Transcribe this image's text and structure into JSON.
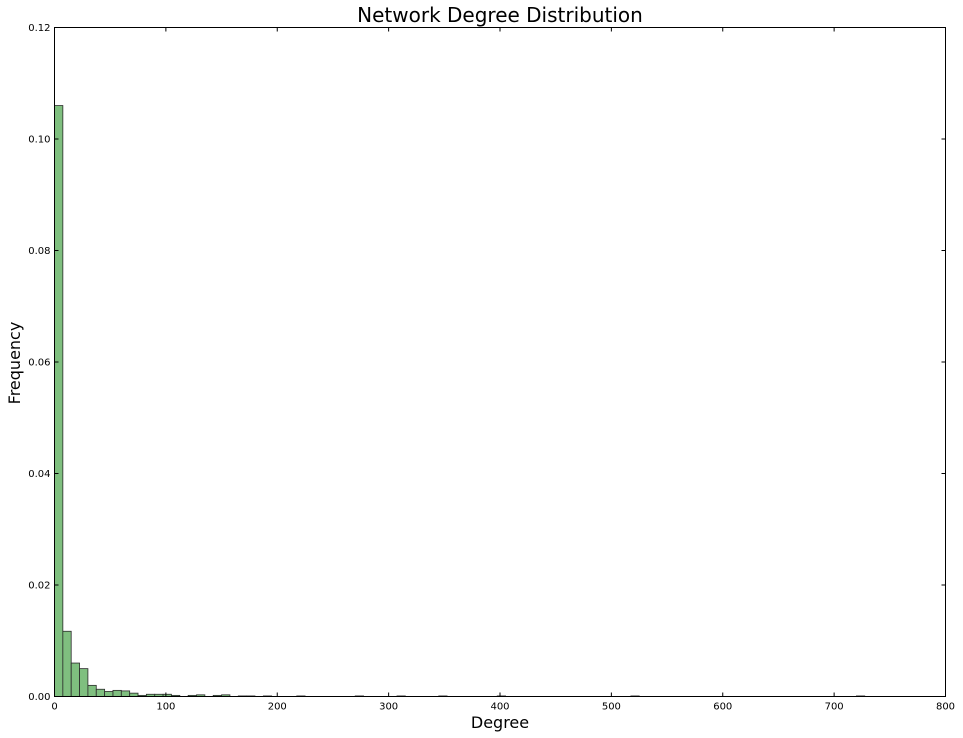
{
  "chart_data": {
    "type": "bar",
    "title": "Network Degree Distribution",
    "xlabel": "Degree",
    "ylabel": "Frequency",
    "xlim": [
      0,
      800
    ],
    "ylim": [
      0,
      0.12
    ],
    "xticks": [
      0,
      100,
      200,
      300,
      400,
      500,
      600,
      700,
      800
    ],
    "xtick_labels": [
      "0",
      "100",
      "200",
      "300",
      "400",
      "500",
      "600",
      "700",
      "800"
    ],
    "yticks": [
      0.0,
      0.02,
      0.04,
      0.06,
      0.08,
      0.1,
      0.12
    ],
    "ytick_labels": [
      "0.00",
      "0.02",
      "0.04",
      "0.06",
      "0.08",
      "0.10",
      "0.12"
    ],
    "grid": false,
    "legend": "none",
    "bin_width": 7.5,
    "bins": [
      {
        "x": 0.0,
        "value": 0.106
      },
      {
        "x": 7.5,
        "value": 0.0117
      },
      {
        "x": 15.0,
        "value": 0.006
      },
      {
        "x": 22.5,
        "value": 0.005
      },
      {
        "x": 30.0,
        "value": 0.002
      },
      {
        "x": 37.5,
        "value": 0.0013
      },
      {
        "x": 45.0,
        "value": 0.0009
      },
      {
        "x": 52.5,
        "value": 0.0011
      },
      {
        "x": 60.0,
        "value": 0.001
      },
      {
        "x": 67.5,
        "value": 0.0006
      },
      {
        "x": 75.0,
        "value": 0.0002
      },
      {
        "x": 82.5,
        "value": 0.0004
      },
      {
        "x": 90.0,
        "value": 0.0004
      },
      {
        "x": 97.5,
        "value": 0.0004
      },
      {
        "x": 105.0,
        "value": 0.0002
      },
      {
        "x": 120.0,
        "value": 0.0002
      },
      {
        "x": 127.5,
        "value": 0.0003
      },
      {
        "x": 142.5,
        "value": 0.0002
      },
      {
        "x": 150.0,
        "value": 0.0003
      },
      {
        "x": 165.0,
        "value": 0.0001
      },
      {
        "x": 172.5,
        "value": 0.0001
      },
      {
        "x": 187.5,
        "value": 0.0001
      },
      {
        "x": 217.5,
        "value": 0.0001
      },
      {
        "x": 270.0,
        "value": 0.0001
      },
      {
        "x": 307.5,
        "value": 0.0001
      },
      {
        "x": 345.0,
        "value": 0.0001
      },
      {
        "x": 397.5,
        "value": 0.0001
      },
      {
        "x": 517.5,
        "value": 0.0001
      },
      {
        "x": 720.0,
        "value": 0.0001
      }
    ],
    "colors": {
      "bar_fill": "#7fbf7f",
      "bar_stroke": "#2b2b2b",
      "axis": "#000000",
      "background": "#ffffff"
    }
  }
}
